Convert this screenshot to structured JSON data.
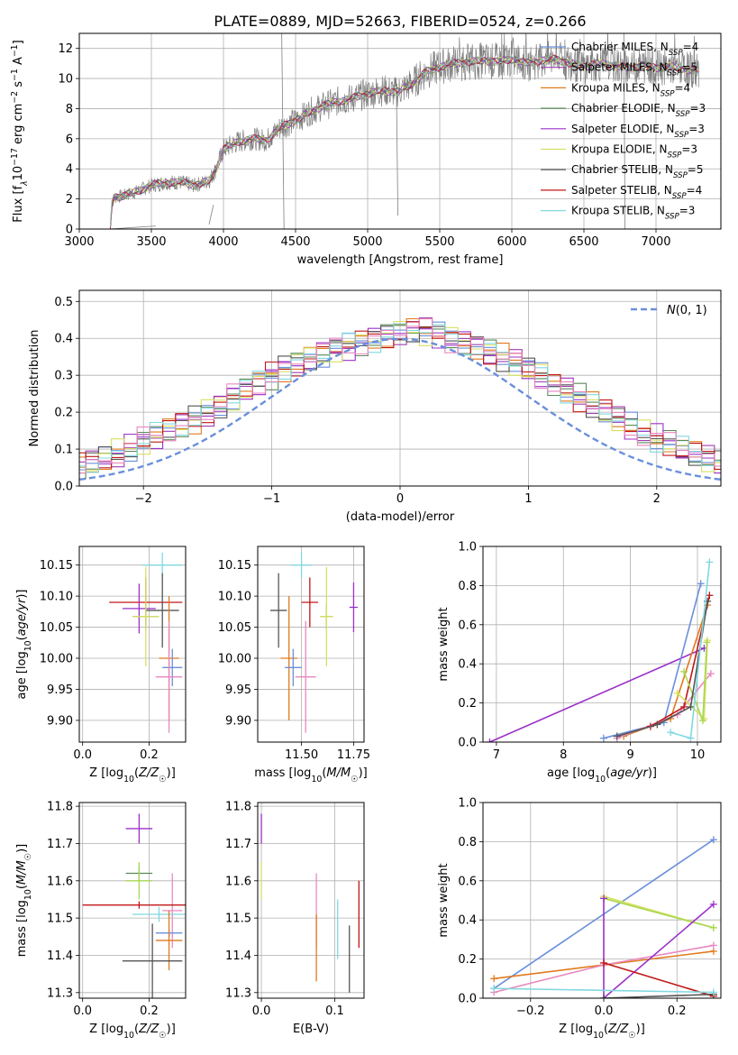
{
  "title": "PLATE=0889, MJD=52663, FIBERID=0524, z=0.266",
  "colors": {
    "Chabrier MILES": "#6a8fdc",
    "Salpeter MILES": "#a040b0",
    "Kroupa MILES": "#e07a1e",
    "Chabrier ELODIE": "#5a8a5a",
    "Salpeter ELODIE": "#9b30c8",
    "Kroupa ELODIE": "#d8e060",
    "Chabrier STELIB": "#555555",
    "Salpeter STELIB": "#c01818",
    "Kroupa STELIB": "#80d8e0",
    "pink": "#e888c0",
    "lime": "#a8d850",
    "normal": "#6a8fdc"
  },
  "chart_data": [
    {
      "id": "spectrum",
      "type": "line",
      "xlabel": "wavelength [Angstrom, rest frame]",
      "ylabel_parts": [
        "Flux [f",
        "λ",
        "10",
        "−17",
        " erg cm",
        "−2",
        " s",
        "−1",
        " A",
        "−1",
        "]"
      ],
      "xlim": [
        3000,
        7450
      ],
      "ylim": [
        0,
        13
      ],
      "xticks": [
        3000,
        3500,
        4000,
        4500,
        5000,
        5500,
        6000,
        6500,
        7000
      ],
      "yticks": [
        0,
        2,
        4,
        6,
        8,
        10,
        12
      ],
      "legend": [
        {
          "model": "Chabrier MILES",
          "n": "4"
        },
        {
          "model": "Salpeter MILES",
          "n": "5"
        },
        {
          "model": "Kroupa MILES",
          "n": "4"
        },
        {
          "model": "Chabrier ELODIE",
          "n": "3"
        },
        {
          "model": "Salpeter ELODIE",
          "n": "3"
        },
        {
          "model": "Kroupa ELODIE",
          "n": "3"
        },
        {
          "model": "Chabrier STELIB",
          "n": "5"
        },
        {
          "model": "Salpeter STELIB",
          "n": "4"
        },
        {
          "model": "Kroupa STELIB",
          "n": "3"
        }
      ],
      "legend_sub": "SSP",
      "continuum": [
        [
          3215,
          0
        ],
        [
          3225,
          1.6
        ],
        [
          3240,
          2.1
        ],
        [
          3300,
          2.2
        ],
        [
          3400,
          2.5
        ],
        [
          3500,
          2.9
        ],
        [
          3600,
          3.1
        ],
        [
          3700,
          3.1
        ],
        [
          3800,
          2.9
        ],
        [
          3900,
          3.2
        ],
        [
          3950,
          4.0
        ],
        [
          4000,
          5.3
        ],
        [
          4100,
          5.8
        ],
        [
          4200,
          6.0
        ],
        [
          4300,
          5.9
        ],
        [
          4400,
          6.8
        ],
        [
          4500,
          7.2
        ],
        [
          4600,
          7.8
        ],
        [
          4700,
          8.2
        ],
        [
          4800,
          8.5
        ],
        [
          4900,
          8.7
        ],
        [
          5000,
          9.0
        ],
        [
          5100,
          9.2
        ],
        [
          5200,
          9.1
        ],
        [
          5300,
          9.6
        ],
        [
          5400,
          10.4
        ],
        [
          5500,
          10.8
        ],
        [
          5600,
          11.0
        ],
        [
          5700,
          11.1
        ],
        [
          5800,
          11.2
        ],
        [
          5900,
          11.1
        ],
        [
          6000,
          11.3
        ],
        [
          6100,
          11.0
        ],
        [
          6200,
          11.2
        ],
        [
          6300,
          11.3
        ],
        [
          6400,
          11.0
        ],
        [
          6500,
          10.8
        ],
        [
          6600,
          11.0
        ],
        [
          6700,
          10.9
        ],
        [
          6800,
          10.7
        ],
        [
          6900,
          10.9
        ],
        [
          7000,
          10.7
        ],
        [
          7100,
          10.8
        ],
        [
          7200,
          10.6
        ],
        [
          7300,
          10.5
        ]
      ],
      "spikes": [
        [
          3210,
          0
        ],
        [
          3530,
          0.2
        ],
        [
          3900,
          0.3
        ],
        [
          3930,
          1.6
        ],
        [
          4404,
          13
        ],
        [
          4420,
          0
        ],
        [
          5200,
          8.9
        ],
        [
          5210,
          0.9
        ],
        [
          6777,
          13
        ],
        [
          6785,
          0
        ]
      ]
    },
    {
      "id": "residuals",
      "type": "histogram",
      "xlabel": "(data-model)/error",
      "ylabel": "Normed distribution",
      "xlim": [
        -2.5,
        2.5
      ],
      "ylim": [
        0,
        0.53
      ],
      "xticks": [
        -2,
        -1,
        0,
        1,
        2
      ],
      "yticks": [
        0.0,
        0.1,
        0.2,
        0.3,
        0.4,
        0.5
      ],
      "legend": [
        "N(0,1)"
      ],
      "bin_width": 0.1,
      "normal": {
        "mu": 0,
        "sigma": 1
      },
      "base_values": [
        0.018,
        0.022,
        0.027,
        0.032,
        0.038,
        0.045,
        0.052,
        0.062,
        0.075,
        0.09,
        0.105,
        0.12,
        0.135,
        0.15,
        0.165,
        0.18,
        0.2,
        0.22,
        0.24,
        0.26,
        0.28,
        0.3,
        0.32,
        0.335,
        0.35,
        0.36,
        0.37,
        0.38,
        0.39,
        0.4,
        0.41,
        0.42,
        0.425,
        0.42,
        0.41,
        0.4,
        0.39,
        0.38,
        0.365,
        0.35,
        0.335,
        0.315,
        0.3,
        0.28,
        0.26,
        0.24,
        0.22,
        0.2,
        0.18,
        0.16,
        0.145,
        0.13,
        0.115,
        0.1,
        0.085,
        0.07,
        0.06,
        0.05,
        0.04,
        0.033,
        0.028,
        0.022,
        0.018
      ]
    },
    {
      "id": "z-age",
      "type": "scatter",
      "xlabel": "Z [log10(Z/Z☉)]",
      "ylabel": "age [log10(age/yr)]",
      "xlim": [
        -0.01,
        0.31
      ],
      "ylim": [
        9.865,
        10.18
      ],
      "xticks": [
        0.0,
        0.2
      ],
      "yticks": [
        9.9,
        9.95,
        10.0,
        10.05,
        10.1,
        10.15
      ],
      "points": [
        {
          "c": "Kroupa STELIB",
          "x": 0.24,
          "y": 10.15,
          "xe": 0.06,
          "ye": 0.02
        },
        {
          "c": "Salpeter STELIB",
          "x": 0.19,
          "y": 10.09,
          "xe": 0.11,
          "ye": 0.04
        },
        {
          "c": "Salpeter ELODIE",
          "x": 0.17,
          "y": 10.08,
          "xe": 0.05,
          "ye": 0.04
        },
        {
          "c": "Chabrier STELIB",
          "x": 0.24,
          "y": 10.077,
          "xe": 0.05,
          "ye": 0.06
        },
        {
          "c": "Chabrier ELODIE",
          "x": 0.19,
          "y": 10.067,
          "xe": 0.04,
          "ye": 0.02
        },
        {
          "c": "Kroupa ELODIE",
          "x": 0.19,
          "y": 10.067,
          "xe": 0.04,
          "ye": 0.08
        },
        {
          "c": "Kroupa MILES",
          "x": 0.26,
          "y": 10.0,
          "xe": 0.03,
          "ye": 0.1
        },
        {
          "c": "Chabrier MILES",
          "x": 0.27,
          "y": 9.985,
          "xe": 0.03,
          "ye": 0.03
        },
        {
          "c": "pink",
          "x": 0.26,
          "y": 9.97,
          "xe": 0.04,
          "ye": 0.09
        }
      ]
    },
    {
      "id": "mass-age",
      "type": "scatter",
      "xlabel": "mass [log10(M/M☉)]",
      "ylabel": "",
      "xlim": [
        11.29,
        11.8
      ],
      "ylim": [
        9.865,
        10.18
      ],
      "xticks": [
        11.5,
        11.75
      ],
      "xticklabels": [
        "11.50",
        "11.75"
      ],
      "yticks": [
        9.9,
        9.95,
        10.0,
        10.05,
        10.1,
        10.15
      ],
      "points": [
        {
          "c": "Kroupa STELIB",
          "x": 11.5,
          "y": 10.15,
          "xe": 0.05,
          "ye": 0.02
        },
        {
          "c": "Salpeter STELIB",
          "x": 11.54,
          "y": 10.09,
          "xe": 0.04,
          "ye": 0.04
        },
        {
          "c": "Salpeter ELODIE",
          "x": 11.75,
          "y": 10.082,
          "xe": 0.02,
          "ye": 0.04
        },
        {
          "c": "Chabrier STELIB",
          "x": 11.39,
          "y": 10.077,
          "xe": 0.04,
          "ye": 0.06
        },
        {
          "c": "Chabrier ELODIE",
          "x": 11.62,
          "y": 10.067,
          "xe": 0.03,
          "ye": 0.02
        },
        {
          "c": "Kroupa ELODIE",
          "x": 11.62,
          "y": 10.067,
          "xe": 0.03,
          "ye": 0.08
        },
        {
          "c": "Kroupa MILES",
          "x": 11.44,
          "y": 10.0,
          "xe": 0.04,
          "ye": 0.1
        },
        {
          "c": "Chabrier MILES",
          "x": 11.46,
          "y": 9.985,
          "xe": 0.04,
          "ye": 0.03
        },
        {
          "c": "pink",
          "x": 11.52,
          "y": 9.97,
          "xe": 0.05,
          "ye": 0.09
        }
      ]
    },
    {
      "id": "age-weight",
      "type": "line",
      "xlabel": "age [log10(age/yr)]",
      "ylabel": "mass weight",
      "xlim": [
        6.8,
        10.35
      ],
      "ylim": [
        0,
        1
      ],
      "xticks": [
        7,
        8,
        9,
        10
      ],
      "yticks": [
        0.0,
        0.2,
        0.4,
        0.6,
        0.8,
        1.0
      ],
      "series": [
        {
          "c": "Salpeter ELODIE",
          "x": [
            6.9,
            10.1
          ],
          "y": [
            0.0,
            0.48
          ]
        },
        {
          "c": "Chabrier MILES",
          "x": [
            8.6,
            9.5,
            10.05
          ],
          "y": [
            0.02,
            0.1,
            0.81
          ]
        },
        {
          "c": "Kroupa MILES",
          "x": [
            8.9,
            9.6,
            10.15
          ],
          "y": [
            0.03,
            0.12,
            0.7
          ]
        },
        {
          "c": "pink",
          "x": [
            8.8,
            9.7,
            10.2
          ],
          "y": [
            0.02,
            0.14,
            0.35
          ]
        },
        {
          "c": "Salpeter STELIB",
          "x": [
            9.3,
            9.8,
            10.18
          ],
          "y": [
            0.08,
            0.18,
            0.75
          ]
        },
        {
          "c": "Kroupa ELODIE",
          "x": [
            9.7,
            10.1,
            10.15
          ],
          "y": [
            0.25,
            0.12,
            0.52
          ]
        },
        {
          "c": "lime",
          "x": [
            9.8,
            10.08,
            10.14
          ],
          "y": [
            0.36,
            0.11,
            0.51
          ]
        },
        {
          "c": "Chabrier STELIB",
          "x": [
            8.8,
            9.4,
            9.9,
            10.15
          ],
          "y": [
            0.03,
            0.09,
            0.18,
            0.72
          ]
        },
        {
          "c": "Kroupa STELIB",
          "x": [
            9.6,
            9.9,
            10.18
          ],
          "y": [
            0.05,
            0.02,
            0.92
          ]
        }
      ]
    },
    {
      "id": "z-mass",
      "type": "scatter",
      "xlabel": "Z [log10(Z/Z☉)]",
      "ylabel": "mass [log10(M/M☉)]",
      "xlim": [
        -0.01,
        0.31
      ],
      "ylim": [
        11.285,
        11.81
      ],
      "xticks": [
        0.0,
        0.2
      ],
      "yticks": [
        11.3,
        11.4,
        11.5,
        11.6,
        11.7,
        11.8
      ],
      "points": [
        {
          "c": "Salpeter ELODIE",
          "x": 0.17,
          "y": 11.74,
          "xe": 0.04,
          "ye": 0.04
        },
        {
          "c": "Chabrier ELODIE",
          "x": 0.17,
          "y": 11.62,
          "xe": 0.04,
          "ye": 0.02
        },
        {
          "c": "lime",
          "x": 0.17,
          "y": 11.6,
          "xe": 0.04,
          "ye": 0.05
        },
        {
          "c": "pink",
          "x": 0.27,
          "y": 11.52,
          "xe": 0.03,
          "ye": 0.1
        },
        {
          "c": "Kroupa STELIB",
          "x": 0.23,
          "y": 11.51,
          "xe": 0.08,
          "ye": 0.02
        },
        {
          "c": "Salpeter STELIB",
          "x": 0.17,
          "y": 11.535,
          "xe": 0.17,
          "ye": 0.01
        },
        {
          "c": "Chabrier MILES",
          "x": 0.26,
          "y": 11.46,
          "xe": 0.04,
          "ye": 0.01
        },
        {
          "c": "Kroupa MILES",
          "x": 0.26,
          "y": 11.44,
          "xe": 0.04,
          "ye": 0.08
        },
        {
          "c": "Chabrier STELIB",
          "x": 0.21,
          "y": 11.385,
          "xe": 0.09,
          "ye": 0.1
        }
      ]
    },
    {
      "id": "ebv-mass",
      "type": "scatter",
      "xlabel": "E(B-V)",
      "ylabel": "",
      "xlim": [
        -0.005,
        0.14
      ],
      "ylim": [
        11.285,
        11.81
      ],
      "xticks": [
        0.0,
        0.1
      ],
      "yticks": [
        11.3,
        11.4,
        11.5,
        11.6,
        11.7,
        11.8
      ],
      "points": [
        {
          "c": "Salpeter ELODIE",
          "x": 0.0,
          "y": 11.74,
          "xe": 0,
          "ye": 0.04
        },
        {
          "c": "Kroupa ELODIE",
          "x": 0.0,
          "y": 11.6,
          "xe": 0,
          "ye": 0.05
        },
        {
          "c": "pink",
          "x": 0.075,
          "y": 11.52,
          "xe": 0,
          "ye": 0.1
        },
        {
          "c": "Kroupa MILES",
          "x": 0.075,
          "y": 11.42,
          "xe": 0,
          "ye": 0.09
        },
        {
          "c": "Kroupa STELIB",
          "x": 0.104,
          "y": 11.47,
          "xe": 0,
          "ye": 0.08
        },
        {
          "c": "Chabrier STELIB",
          "x": 0.12,
          "y": 11.39,
          "xe": 0,
          "ye": 0.09
        },
        {
          "c": "Salpeter STELIB",
          "x": 0.133,
          "y": 11.51,
          "xe": 0,
          "ye": 0.09
        }
      ]
    },
    {
      "id": "z-weight",
      "type": "line",
      "xlabel": "Z [log10(Z/Z☉)]",
      "ylabel": "mass weight",
      "xlim": [
        -0.33,
        0.32
      ],
      "ylim": [
        0,
        1
      ],
      "xticks": [
        -0.2,
        0.0,
        0.2
      ],
      "xticklabels": [
        "−0.2",
        "0.0",
        "0.2"
      ],
      "yticks": [
        0.0,
        0.2,
        0.4,
        0.6,
        0.8,
        1.0
      ],
      "series": [
        {
          "c": "Chabrier MILES",
          "x": [
            -0.3,
            0.3
          ],
          "y": [
            0.05,
            0.81
          ]
        },
        {
          "c": "Kroupa MILES",
          "x": [
            -0.3,
            0.0,
            0.3
          ],
          "y": [
            0.1,
            0.17,
            0.24
          ]
        },
        {
          "c": "pink",
          "x": [
            -0.3,
            0.0,
            0.3
          ],
          "y": [
            0.03,
            0.17,
            0.27
          ]
        },
        {
          "c": "Kroupa ELODIE",
          "x": [
            0.0,
            0.3
          ],
          "y": [
            0.52,
            0.36
          ]
        },
        {
          "c": "lime",
          "x": [
            0.0,
            0.3
          ],
          "y": [
            0.51,
            0.36
          ]
        },
        {
          "c": "Salpeter ELODIE",
          "x": [
            0.0,
            0.0,
            0.3
          ],
          "y": [
            0.51,
            0.0,
            0.48
          ]
        },
        {
          "c": "Salpeter STELIB",
          "x": [
            0.0,
            0.3
          ],
          "y": [
            0.18,
            0.01
          ]
        },
        {
          "c": "Chabrier STELIB",
          "x": [
            0.0,
            0.3
          ],
          "y": [
            0.0,
            0.02
          ]
        },
        {
          "c": "Kroupa STELIB",
          "x": [
            -0.3,
            0.3
          ],
          "y": [
            0.05,
            0.03
          ]
        }
      ]
    }
  ]
}
